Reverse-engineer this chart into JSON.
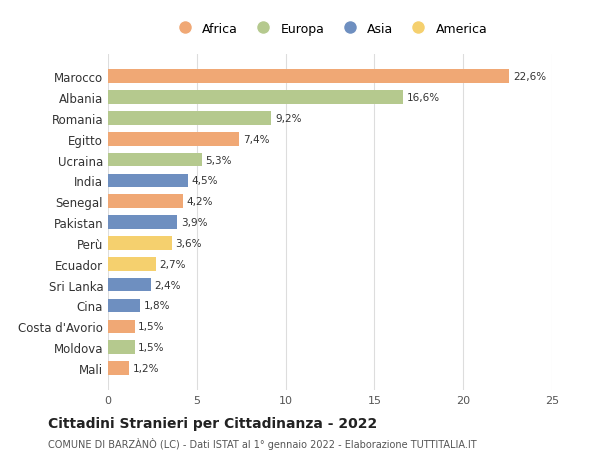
{
  "countries": [
    "Marocco",
    "Albania",
    "Romania",
    "Egitto",
    "Ucraina",
    "India",
    "Senegal",
    "Pakistan",
    "Perù",
    "Ecuador",
    "Sri Lanka",
    "Cina",
    "Costa d'Avorio",
    "Moldova",
    "Mali"
  ],
  "values": [
    22.6,
    16.6,
    9.2,
    7.4,
    5.3,
    4.5,
    4.2,
    3.9,
    3.6,
    2.7,
    2.4,
    1.8,
    1.5,
    1.5,
    1.2
  ],
  "labels": [
    "22,6%",
    "16,6%",
    "9,2%",
    "7,4%",
    "5,3%",
    "4,5%",
    "4,2%",
    "3,9%",
    "3,6%",
    "2,7%",
    "2,4%",
    "1,8%",
    "1,5%",
    "1,5%",
    "1,2%"
  ],
  "continents": [
    "Africa",
    "Europa",
    "Europa",
    "Africa",
    "Europa",
    "Asia",
    "Africa",
    "Asia",
    "America",
    "America",
    "Asia",
    "Asia",
    "Africa",
    "Europa",
    "Africa"
  ],
  "colors": {
    "Africa": "#F0A875",
    "Europa": "#B5C98E",
    "Asia": "#6E8FC0",
    "America": "#F5D06E"
  },
  "legend_order": [
    "Africa",
    "Europa",
    "Asia",
    "America"
  ],
  "legend_colors": [
    "#F0A875",
    "#B5C98E",
    "#6E8FC0",
    "#F5D06E"
  ],
  "title": "Cittadini Stranieri per Cittadinanza - 2022",
  "subtitle": "COMUNE DI BARZÀNÒ (LC) - Dati ISTAT al 1° gennaio 2022 - Elaborazione TUTTITALIA.IT",
  "xlim": [
    0,
    25
  ],
  "xticks": [
    0,
    5,
    10,
    15,
    20,
    25
  ],
  "background_color": "#ffffff",
  "bar_height": 0.65,
  "grid_color": "#dddddd"
}
